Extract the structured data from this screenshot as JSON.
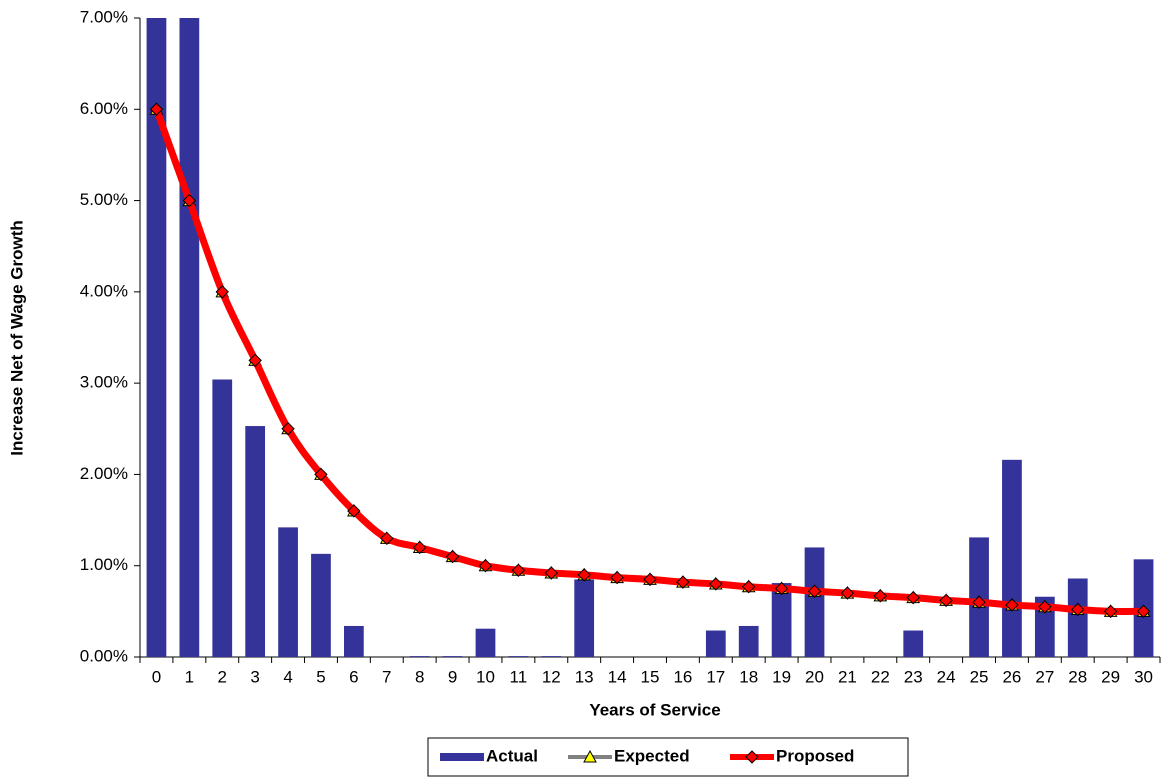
{
  "chart_data": {
    "type": "bar",
    "x_label": "Years of Service",
    "y_label": "Increase Net of Wage Growth",
    "categories": [
      "0",
      "1",
      "2",
      "3",
      "4",
      "5",
      "6",
      "7",
      "8",
      "9",
      "10",
      "11",
      "12",
      "13",
      "14",
      "15",
      "16",
      "17",
      "18",
      "19",
      "20",
      "21",
      "22",
      "23",
      "24",
      "25",
      "26",
      "27",
      "28",
      "29",
      "30"
    ],
    "ylim": [
      0,
      7
    ],
    "yticks": [
      {
        "value": 0,
        "label": "0.00%"
      },
      {
        "value": 1,
        "label": "1.00%"
      },
      {
        "value": 2,
        "label": "2.00%"
      },
      {
        "value": 3,
        "label": "3.00%"
      },
      {
        "value": 4,
        "label": "4.00%"
      },
      {
        "value": 5,
        "label": "5.00%"
      },
      {
        "value": 6,
        "label": "6.00%"
      },
      {
        "value": 7,
        "label": "7.00%"
      }
    ],
    "legend": "bottom",
    "series": [
      {
        "name": "Actual",
        "type": "bar",
        "color": "#333399",
        "values": [
          7,
          7,
          3.04,
          2.53,
          1.42,
          1.13,
          0.34,
          0,
          0.01,
          0.01,
          0.31,
          0.01,
          0.01,
          0.85,
          0,
          0,
          0,
          0.29,
          0.34,
          0.81,
          1.2,
          0,
          0,
          0.29,
          0,
          1.31,
          2.16,
          0.66,
          0.86,
          0,
          1.07
        ]
      },
      {
        "name": "Expected",
        "type": "line",
        "color": "#808080",
        "marker": "triangle",
        "marker_color": "#ffff00",
        "values": [
          6,
          5,
          4,
          3.25,
          2.5,
          2,
          1.6,
          1.3,
          1.2,
          1.1,
          1.0,
          0.95,
          0.92,
          0.9,
          0.87,
          0.85,
          0.82,
          0.8,
          0.77,
          0.75,
          0.72,
          0.7,
          0.67,
          0.65,
          0.62,
          0.6,
          0.57,
          0.55,
          0.52,
          0.5,
          0.5
        ]
      },
      {
        "name": "Proposed",
        "type": "line",
        "color": "#ff0000",
        "marker": "diamond",
        "marker_color": "#ff0000",
        "values": [
          6,
          5,
          4,
          3.25,
          2.5,
          2,
          1.6,
          1.3,
          1.2,
          1.1,
          1.0,
          0.95,
          0.92,
          0.9,
          0.87,
          0.85,
          0.82,
          0.8,
          0.77,
          0.75,
          0.72,
          0.7,
          0.67,
          0.65,
          0.62,
          0.6,
          0.57,
          0.55,
          0.52,
          0.5,
          0.5
        ]
      }
    ]
  }
}
